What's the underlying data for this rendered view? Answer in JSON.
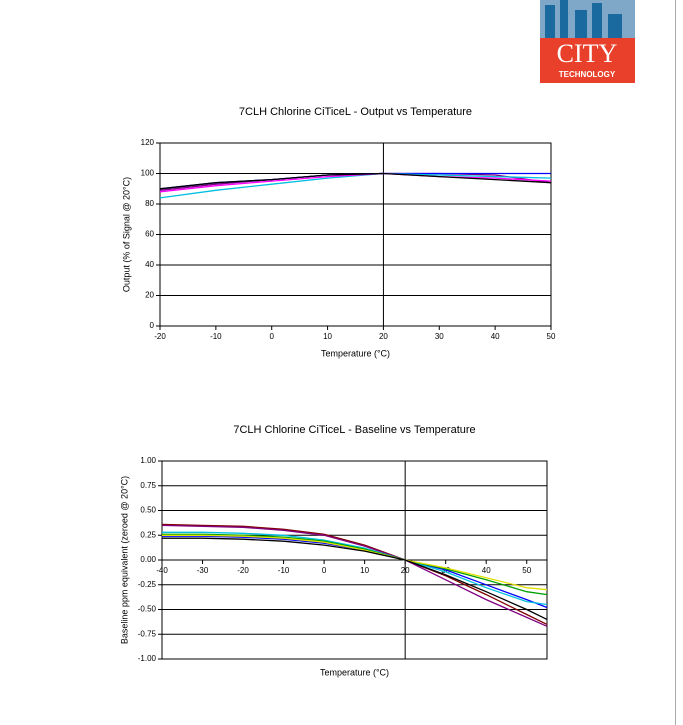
{
  "logo": {
    "name": "CITY",
    "tagline": "TECHNOLOGY"
  },
  "chart_data": [
    {
      "type": "line",
      "title": "7CLH Chlorine CiTiceL - Output vs Temperature",
      "x_label": "Temperature (°C)",
      "y_label": "Output (% of Signal @ 20°C)",
      "x": [
        -20,
        -10,
        0,
        10,
        20,
        30,
        40,
        50
      ],
      "series": [
        {
          "color": "#800080",
          "values": [
            89,
            93,
            96,
            99,
            100,
            100,
            99,
            94
          ]
        },
        {
          "color": "#0000ff",
          "values": [
            90,
            94,
            96,
            99,
            100,
            100,
            100,
            100
          ]
        },
        {
          "color": "#00c0e0",
          "values": [
            84,
            89,
            93,
            97,
            100,
            99,
            98,
            97
          ]
        },
        {
          "color": "#ff00ff",
          "values": [
            88,
            92,
            95,
            98,
            100,
            98,
            97,
            95
          ]
        },
        {
          "color": "#000000",
          "values": [
            90,
            94,
            96,
            99,
            100,
            98,
            96,
            94
          ]
        }
      ],
      "xlim": [
        -20,
        50
      ],
      "xticks": [
        -20,
        -10,
        0,
        10,
        20,
        30,
        40,
        50
      ],
      "ylim": [
        0,
        120
      ],
      "yticks": [
        0,
        20,
        40,
        60,
        80,
        100,
        120
      ],
      "grid": true,
      "vline_x": 20
    },
    {
      "type": "line",
      "title": "7CLH Chlorine CiTiceL - Baseline vs Temperature",
      "x_label": "Temperature (°C)",
      "y_label": "Baseline ppm equivalent (zeroed @ 20°C)",
      "x": [
        -40,
        -30,
        -20,
        -10,
        0,
        10,
        20,
        30,
        40,
        50,
        55
      ],
      "series": [
        {
          "color": "#800000",
          "values": [
            0.36,
            0.35,
            0.34,
            0.31,
            0.26,
            0.15,
            0,
            -0.16,
            -0.35,
            -0.55,
            -0.65
          ]
        },
        {
          "color": "#800080",
          "values": [
            0.35,
            0.34,
            0.33,
            0.3,
            0.25,
            0.14,
            0,
            -0.2,
            -0.4,
            -0.58,
            -0.67
          ]
        },
        {
          "color": "#0000ff",
          "values": [
            0.24,
            0.24,
            0.23,
            0.21,
            0.17,
            0.1,
            0,
            -0.1,
            -0.25,
            -0.4,
            -0.48
          ]
        },
        {
          "color": "#00c0e0",
          "values": [
            0.28,
            0.28,
            0.27,
            0.25,
            0.2,
            0.12,
            0,
            -0.12,
            -0.28,
            -0.42,
            -0.45
          ]
        },
        {
          "color": "#00a000",
          "values": [
            0.26,
            0.26,
            0.25,
            0.23,
            0.19,
            0.11,
            0,
            -0.09,
            -0.2,
            -0.32,
            -0.35
          ]
        },
        {
          "color": "#e0e000",
          "values": [
            0.25,
            0.25,
            0.24,
            0.22,
            0.18,
            0.1,
            0,
            -0.08,
            -0.18,
            -0.28,
            -0.3
          ]
        },
        {
          "color": "#000000",
          "values": [
            0.22,
            0.22,
            0.21,
            0.19,
            0.15,
            0.09,
            0,
            -0.15,
            -0.32,
            -0.5,
            -0.6
          ]
        }
      ],
      "xlim": [
        -40,
        55
      ],
      "xticks": [
        -40,
        -30,
        -20,
        -10,
        0,
        10,
        20,
        30,
        40,
        50
      ],
      "ylim": [
        -1,
        1
      ],
      "yticks": [
        {
          "value": -1,
          "label": "-1.00"
        },
        {
          "value": -0.75,
          "label": "-0.75"
        },
        {
          "value": -0.5,
          "label": "-0.50"
        },
        {
          "value": -0.25,
          "label": "-0.25"
        },
        {
          "value": 0,
          "label": "0.00"
        },
        {
          "value": 0.25,
          "label": "0.25"
        },
        {
          "value": 0.5,
          "label": "0.50"
        },
        {
          "value": 0.75,
          "label": "0.75"
        },
        {
          "value": 1,
          "label": "1.00"
        }
      ],
      "grid": true,
      "vline_x": 20,
      "xtick_labels_at_zero": true
    }
  ]
}
